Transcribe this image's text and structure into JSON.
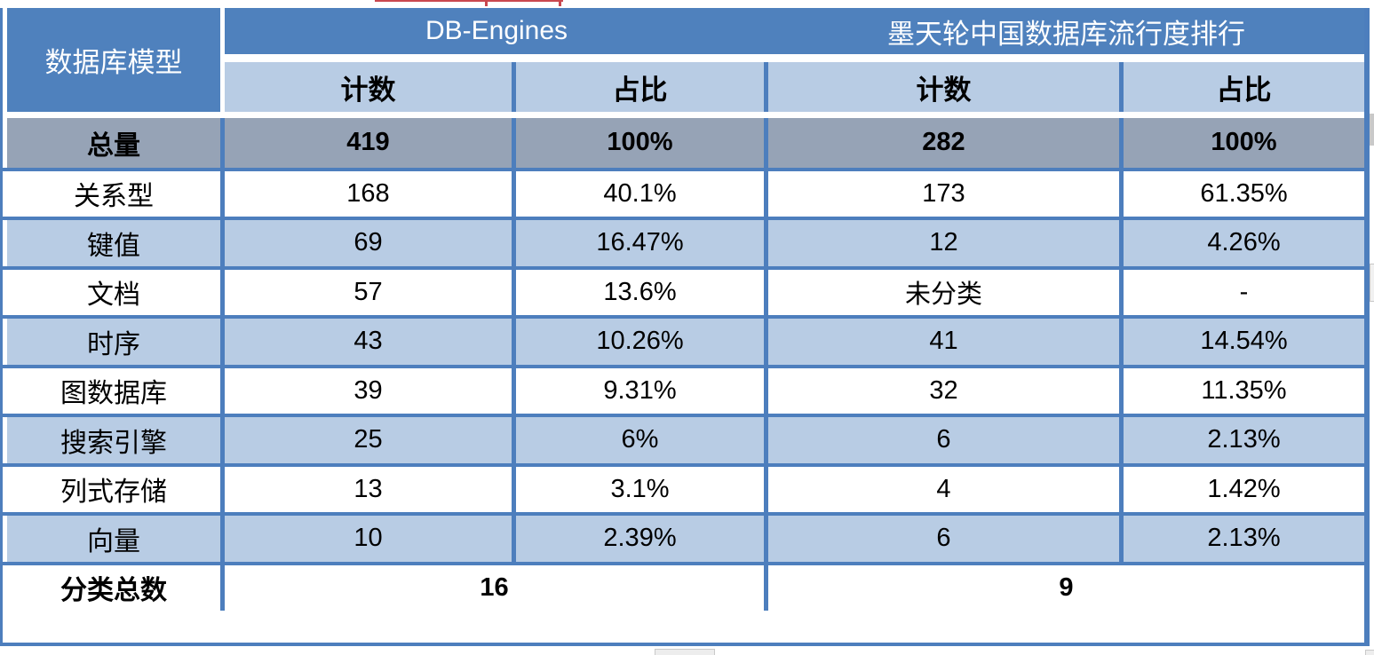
{
  "colors": {
    "header_blue": "#4f81bd",
    "light_blue": "#b8cce4",
    "total_gray_blue": "#96a3b6",
    "grid_blue": "#4d7ebd",
    "red_artifact": "#c9484f",
    "scrollbar_gray": "#c9c9c9"
  },
  "table": {
    "header": {
      "model_label": "数据库模型",
      "group1": "DB-Engines",
      "group2": "墨天轮中国数据库流行度排行",
      "sub_labels": [
        "计数",
        "占比",
        "计数",
        "占比"
      ]
    },
    "rows": [
      {
        "style": "total",
        "label": "总量",
        "cells": [
          "419",
          "100%",
          "282",
          "100%"
        ]
      },
      {
        "style": "plain",
        "label": "关系型",
        "cells": [
          "168",
          "40.1%",
          "173",
          "61.35%"
        ]
      },
      {
        "style": "alt",
        "label": "键值",
        "cells": [
          "69",
          "16.47%",
          "12",
          "4.26%"
        ]
      },
      {
        "style": "plain",
        "label": "文档",
        "cells": [
          "57",
          "13.6%",
          "未分类",
          "-"
        ]
      },
      {
        "style": "alt",
        "label": "时序",
        "cells": [
          "43",
          "10.26%",
          "41",
          "14.54%"
        ]
      },
      {
        "style": "plain",
        "label": "图数据库",
        "cells": [
          "39",
          "9.31%",
          "32",
          "11.35%"
        ]
      },
      {
        "style": "alt",
        "label": "搜索引擎",
        "cells": [
          "25",
          "6%",
          "6",
          "2.13%"
        ]
      },
      {
        "style": "plain",
        "label": "列式存储",
        "cells": [
          "13",
          "3.1%",
          "4",
          "1.42%"
        ]
      },
      {
        "style": "alt",
        "label": "向量",
        "cells": [
          "10",
          "2.39%",
          "6",
          "2.13%"
        ]
      },
      {
        "style": "footer",
        "label": "分类总数",
        "cells": [
          "16",
          "9"
        ]
      }
    ]
  },
  "chart_data": {
    "type": "table",
    "title": "",
    "column_groups": [
      "数据库模型",
      "DB-Engines",
      "墨天轮中国数据库流行度排行"
    ],
    "columns": [
      "数据库模型",
      "DB-Engines 计数",
      "DB-Engines 占比",
      "墨天轮 计数",
      "墨天轮 占比"
    ],
    "rows": [
      [
        "总量",
        "419",
        "100%",
        "282",
        "100%"
      ],
      [
        "关系型",
        "168",
        "40.1%",
        "173",
        "61.35%"
      ],
      [
        "键值",
        "69",
        "16.47%",
        "12",
        "4.26%"
      ],
      [
        "文档",
        "57",
        "13.6%",
        "未分类",
        "-"
      ],
      [
        "时序",
        "43",
        "10.26%",
        "41",
        "14.54%"
      ],
      [
        "图数据库",
        "39",
        "9.31%",
        "32",
        "11.35%"
      ],
      [
        "搜索引擎",
        "25",
        "6%",
        "6",
        "2.13%"
      ],
      [
        "列式存储",
        "13",
        "3.1%",
        "4",
        "1.42%"
      ],
      [
        "向量",
        "10",
        "2.39%",
        "6",
        "2.13%"
      ],
      [
        "分类总数",
        "16",
        "",
        "9",
        ""
      ]
    ]
  }
}
